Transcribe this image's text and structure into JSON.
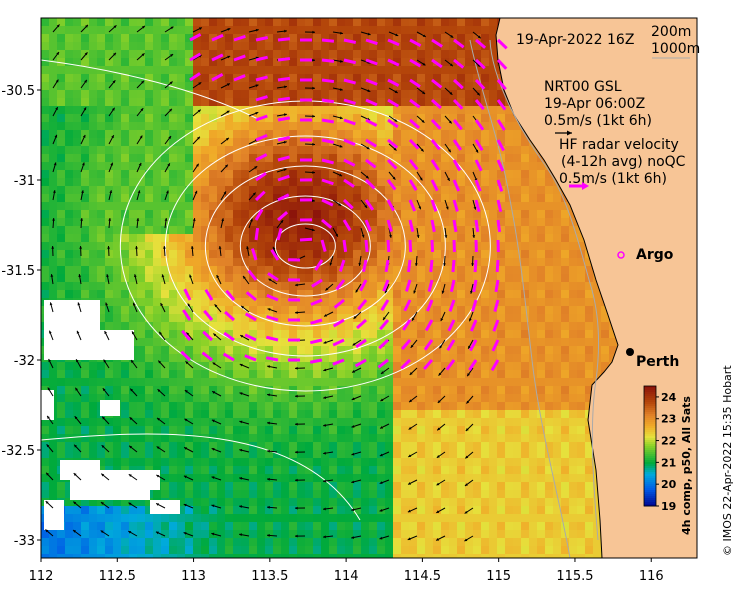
{
  "title_time": "19-Apr-2022 16Z",
  "contour_legend": {
    "line1": "200m",
    "line2": "1000m"
  },
  "gsl": {
    "line1": "NRT00 GSL",
    "line2": "19-Apr 06:00Z",
    "line3": "0.5m/s (1kt 6h)"
  },
  "hf_radar": {
    "line1": "HF radar velocity",
    "line2": "(4-12h avg) noQC",
    "line3": "0.5m/s (1kt 6h)"
  },
  "places": {
    "argo": "Argo",
    "perth": "Perth"
  },
  "colorbar": {
    "label": "4h comp, p50, All Sats",
    "ticks": [
      "24",
      "23",
      "22",
      "21",
      "20",
      "19"
    ],
    "min": 19,
    "max": 24.5
  },
  "credit": "© IMOS 22-Apr-2022 15:35 Hobart",
  "x_ticks": [
    "112",
    "112.5",
    "113",
    "113.5",
    "114",
    "114.5",
    "115",
    "115.5",
    "116"
  ],
  "y_ticks": [
    "-30.5",
    "-31",
    "-31.5",
    "-32",
    "-32.5",
    "-33"
  ],
  "chart_data": {
    "type": "heatmap",
    "variable": "sea surface temperature (°C)",
    "colorbar_range": [
      19,
      24.5
    ],
    "xlim": [
      112,
      116.3
    ],
    "ylim": [
      -33.1,
      -30.1
    ],
    "eddy_center": {
      "lon": 113.7,
      "lat": -31.2,
      "sst": 24.3
    },
    "warm_core_sst": 24.3,
    "cool_west_sst": 21.0,
    "coastal_sst": 23.0
  },
  "colors": {
    "land": "#f7c596",
    "hf_arrow": "#ff00ff",
    "gsl_arrow": "#000000",
    "contour": "#ffffff"
  }
}
